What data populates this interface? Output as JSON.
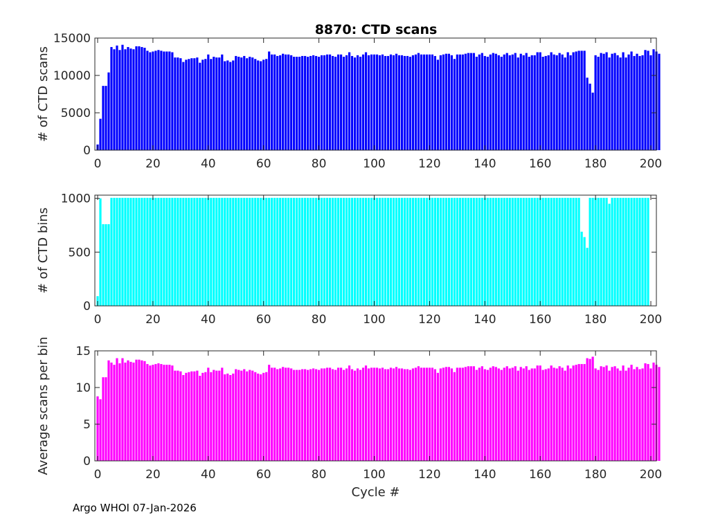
{
  "figure_title": "8870: CTD scans",
  "footer": "Argo WHOI 07-Jan-2026",
  "chart_data": [
    {
      "type": "bar",
      "title": "8870: CTD scans",
      "ylabel": "# of CTD scans",
      "xlabel": "",
      "xlim": [
        -1,
        202
      ],
      "ylim": [
        0,
        15000
      ],
      "xticks": [
        0,
        20,
        40,
        60,
        80,
        100,
        120,
        140,
        160,
        180,
        200
      ],
      "yticks": [
        0,
        5000,
        10000,
        15000
      ],
      "color": "#0000ff",
      "x_start": 0,
      "values": [
        760,
        4200,
        8600,
        8600,
        10400,
        13800,
        13500,
        14000,
        13400,
        14100,
        13500,
        13800,
        13600,
        13500,
        13900,
        13900,
        13800,
        13700,
        13300,
        13100,
        13200,
        13300,
        13400,
        13300,
        13200,
        13200,
        13200,
        13100,
        12400,
        12400,
        12300,
        11800,
        12100,
        12200,
        12300,
        12300,
        12400,
        11700,
        12100,
        12200,
        12800,
        12200,
        12500,
        12400,
        12400,
        12800,
        11900,
        12000,
        11800,
        12000,
        12600,
        12500,
        12400,
        12600,
        12300,
        12500,
        12400,
        12200,
        12000,
        11900,
        12100,
        12200,
        13200,
        12800,
        12800,
        12600,
        12700,
        12900,
        12800,
        12800,
        12700,
        12500,
        12500,
        12500,
        12600,
        12600,
        12500,
        12600,
        12700,
        12600,
        12500,
        12700,
        12700,
        12800,
        12800,
        12600,
        12500,
        12800,
        12800,
        12500,
        12700,
        13100,
        12600,
        12400,
        12700,
        12500,
        12800,
        13100,
        12700,
        12800,
        12800,
        12800,
        12700,
        12800,
        12600,
        12600,
        12800,
        12700,
        12900,
        12700,
        12700,
        12600,
        12600,
        12500,
        12700,
        12800,
        13000,
        12800,
        12800,
        12800,
        12800,
        12800,
        12600,
        12100,
        12700,
        12800,
        12900,
        12900,
        12700,
        12200,
        12800,
        12800,
        12800,
        12900,
        13000,
        13000,
        13000,
        12500,
        12800,
        13000,
        12600,
        12500,
        12800,
        13000,
        12900,
        12700,
        12500,
        12800,
        13000,
        12700,
        12800,
        13000,
        12400,
        12900,
        12700,
        13000,
        12500,
        12700,
        12700,
        13100,
        13100,
        12500,
        12600,
        12700,
        13100,
        12800,
        12700,
        13000,
        12800,
        12400,
        13100,
        12700,
        13100,
        13200,
        13300,
        13300,
        13300,
        9700,
        8900,
        7700,
        12700,
        12500,
        13000,
        12900,
        13100,
        12400,
        12900,
        13000,
        12700,
        12400,
        13100,
        12400,
        12800,
        13200,
        12600,
        12900,
        12600,
        12700,
        13400,
        13300,
        12700,
        13500,
        13200,
        12900
      ]
    },
    {
      "type": "bar",
      "title": "",
      "ylabel": "# of CTD bins",
      "xlabel": "",
      "xlim": [
        -1,
        202
      ],
      "ylim": [
        0,
        1030
      ],
      "xticks": [
        0,
        20,
        40,
        60,
        80,
        100,
        120,
        140,
        160,
        180,
        200
      ],
      "yticks": [
        0,
        500,
        1000
      ],
      "color": "#00ffff",
      "x_start": 0,
      "values": [
        90,
        1000,
        760,
        760,
        760,
        1005,
        1005,
        1005,
        1005,
        1005,
        1005,
        1005,
        1005,
        1005,
        1005,
        1005,
        1005,
        1005,
        1005,
        1005,
        1005,
        1005,
        1005,
        1005,
        1005,
        1005,
        1005,
        1005,
        1005,
        1005,
        1005,
        1005,
        1005,
        1005,
        1005,
        1005,
        1005,
        1005,
        1005,
        1005,
        1005,
        1005,
        1005,
        1005,
        1005,
        1005,
        1005,
        1005,
        1005,
        1005,
        1005,
        1005,
        1005,
        1005,
        1005,
        1005,
        1005,
        1005,
        1005,
        1005,
        1005,
        1005,
        1005,
        1005,
        1005,
        1005,
        1005,
        1005,
        1005,
        1005,
        1005,
        1005,
        1005,
        1005,
        1005,
        1005,
        1005,
        1005,
        1005,
        1005,
        1005,
        1005,
        1005,
        1005,
        1005,
        1005,
        1005,
        1005,
        1005,
        1005,
        1005,
        1005,
        1005,
        1005,
        1005,
        1005,
        1005,
        1005,
        1005,
        1005,
        1005,
        1005,
        1005,
        1005,
        1005,
        1005,
        1005,
        1005,
        1005,
        1005,
        1005,
        1005,
        1005,
        1005,
        1005,
        1005,
        1005,
        1005,
        1005,
        1005,
        1005,
        1005,
        1005,
        1005,
        1005,
        1005,
        1005,
        1005,
        1005,
        1005,
        1005,
        1005,
        1005,
        1005,
        1005,
        1005,
        1005,
        1005,
        1005,
        1005,
        1005,
        1005,
        1005,
        1005,
        1005,
        1005,
        1005,
        1005,
        1005,
        1005,
        1005,
        1005,
        1005,
        1005,
        1005,
        1005,
        1005,
        1005,
        1005,
        1005,
        1005,
        1005,
        1005,
        1005,
        1005,
        1005,
        1005,
        1005,
        1005,
        1005,
        1005,
        1005,
        1005,
        1005,
        1005,
        690,
        640,
        540,
        1005,
        1005,
        1005,
        1005,
        1005,
        1005,
        1005,
        950,
        1005,
        1005,
        1005,
        1005,
        1005,
        1005,
        1005,
        1005,
        1005,
        1005,
        1005,
        1005,
        1005,
        1005
      ]
    },
    {
      "type": "bar",
      "title": "",
      "ylabel": "Average scans per bin",
      "xlabel": "Cycle #",
      "xlim": [
        -1,
        202
      ],
      "ylim": [
        0,
        15
      ],
      "xticks": [
        0,
        20,
        40,
        60,
        80,
        100,
        120,
        140,
        160,
        180,
        200
      ],
      "yticks": [
        0,
        5,
        10,
        15
      ],
      "color": "#ff00ff",
      "x_start": 0,
      "values": [
        8.8,
        8.4,
        11.4,
        11.4,
        13.7,
        13.4,
        13.1,
        14.0,
        13.3,
        14.0,
        13.4,
        13.7,
        13.5,
        13.4,
        13.8,
        13.8,
        13.7,
        13.6,
        13.2,
        13.0,
        13.1,
        13.2,
        13.3,
        13.2,
        13.1,
        13.1,
        13.1,
        13.0,
        12.3,
        12.3,
        12.2,
        11.7,
        12.0,
        12.1,
        12.2,
        12.2,
        12.3,
        11.6,
        12.0,
        12.1,
        12.7,
        12.1,
        12.4,
        12.3,
        12.3,
        12.7,
        11.8,
        11.9,
        11.7,
        11.9,
        12.5,
        12.4,
        12.3,
        12.5,
        12.2,
        12.4,
        12.3,
        12.1,
        11.9,
        11.8,
        12.0,
        12.1,
        13.1,
        12.7,
        12.7,
        12.5,
        12.6,
        12.8,
        12.7,
        12.7,
        12.6,
        12.4,
        12.4,
        12.4,
        12.5,
        12.5,
        12.4,
        12.5,
        12.6,
        12.5,
        12.4,
        12.6,
        12.6,
        12.7,
        12.7,
        12.5,
        12.4,
        12.7,
        12.7,
        12.4,
        12.6,
        13.0,
        12.5,
        12.3,
        12.6,
        12.4,
        12.7,
        13.0,
        12.6,
        12.7,
        12.7,
        12.7,
        12.6,
        12.7,
        12.5,
        12.5,
        12.7,
        12.6,
        12.8,
        12.6,
        12.6,
        12.5,
        12.5,
        12.4,
        12.6,
        12.7,
        12.9,
        12.7,
        12.7,
        12.7,
        12.7,
        12.7,
        12.5,
        12.0,
        12.6,
        12.7,
        12.8,
        12.8,
        12.6,
        12.1,
        12.7,
        12.7,
        12.7,
        12.8,
        12.9,
        12.9,
        12.9,
        12.4,
        12.7,
        12.9,
        12.5,
        12.4,
        12.7,
        12.9,
        12.8,
        12.6,
        12.4,
        12.7,
        12.9,
        12.6,
        12.7,
        12.9,
        12.3,
        12.8,
        12.6,
        12.9,
        12.4,
        12.6,
        12.6,
        13.0,
        13.0,
        12.4,
        12.5,
        12.6,
        13.0,
        12.7,
        12.6,
        12.9,
        12.7,
        12.3,
        13.0,
        12.6,
        13.0,
        13.1,
        13.2,
        13.2,
        13.2,
        14.0,
        13.9,
        14.2,
        12.6,
        12.4,
        12.9,
        12.8,
        13.0,
        12.3,
        12.8,
        12.9,
        12.6,
        12.3,
        13.0,
        12.3,
        12.7,
        13.1,
        12.5,
        12.8,
        12.5,
        12.6,
        13.3,
        13.2,
        12.6,
        13.4,
        13.1,
        12.8
      ]
    }
  ]
}
